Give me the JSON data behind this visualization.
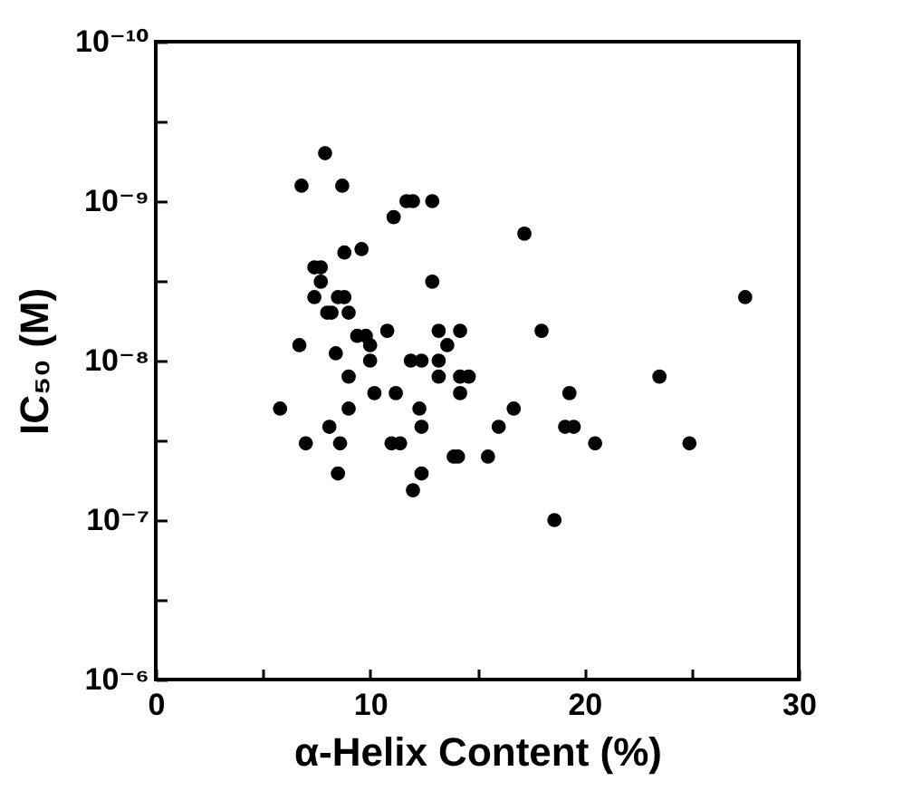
{
  "chart_data": {
    "type": "scatter",
    "xlabel": "α-Helix Content (%)",
    "ylabel": "IC₅₀ (M)",
    "log": "y",
    "marker": "circle",
    "xlim": [
      0,
      30
    ],
    "xticks": [
      0,
      {
        "value": 5,
        "label": null
      },
      10,
      {
        "value": 15,
        "label": null
      },
      20,
      {
        "value": 25,
        "label": null
      },
      30
    ],
    "ylim": [
      1e-06,
      1e-10
    ],
    "yticks": [
      {
        "value": 1e-10,
        "label": "10⁻¹⁰"
      },
      {
        "value": 3.16e-10,
        "label": null
      },
      {
        "value": 1e-09,
        "label": "10⁻⁹"
      },
      {
        "value": 3.16e-09,
        "label": null
      },
      {
        "value": 1e-08,
        "label": "10⁻⁸"
      },
      {
        "value": 3.16e-08,
        "label": null
      },
      {
        "value": 1e-07,
        "label": "10⁻⁷"
      },
      {
        "value": 3.16e-07,
        "label": null
      },
      {
        "value": 1e-06,
        "label": "10⁻⁶"
      }
    ],
    "x": [
      5.8,
      7.9,
      6.8,
      8.7,
      11.1,
      11.7,
      12.0,
      12.9,
      17.2,
      8.8,
      9.6,
      7.4,
      7.7,
      7.7,
      7.4,
      8.5,
      8.8,
      8.0,
      8.2,
      9.0,
      12.9,
      27.5,
      9.4,
      9.8,
      10.8,
      13.2,
      14.2,
      18.0,
      6.7,
      10.0,
      13.6,
      8.4,
      10.0,
      11.9,
      12.4,
      13.2,
      13.2,
      14.2,
      14.6,
      9.0,
      23.5,
      10.2,
      11.2,
      14.2,
      19.3,
      9.0,
      12.3,
      16.7,
      8.1,
      12.4,
      16.0,
      19.1,
      19.5,
      7.0,
      8.6,
      11.0,
      11.4,
      20.5,
      24.9,
      13.9,
      14.1,
      15.5,
      8.5,
      12.4,
      12.0,
      18.6
    ],
    "series": [
      {
        "color": "#000000",
        "values": [
          2e-08,
          5e-10,
          8e-10,
          8e-10,
          1.26e-09,
          1e-09,
          1e-09,
          1e-09,
          1.6e-09,
          2.1e-09,
          2e-09,
          2.6e-09,
          2.6e-09,
          3.2e-09,
          4e-09,
          4e-09,
          4e-09,
          5e-09,
          5e-09,
          5e-09,
          3.2e-09,
          4e-09,
          7e-09,
          7e-09,
          6.5e-09,
          6.5e-09,
          6.5e-09,
          6.5e-09,
          8e-09,
          8e-09,
          8e-09,
          9e-09,
          1e-08,
          1e-08,
          1e-08,
          1e-08,
          1.26e-08,
          1.26e-08,
          1.26e-08,
          1.26e-08,
          1.26e-08,
          1.6e-08,
          1.6e-08,
          1.6e-08,
          1.6e-08,
          2e-08,
          2e-08,
          2e-08,
          2.6e-08,
          2.6e-08,
          2.6e-08,
          2.6e-08,
          2.6e-08,
          3.3e-08,
          3.3e-08,
          3.3e-08,
          3.3e-08,
          3.3e-08,
          3.3e-08,
          4e-08,
          4e-08,
          4e-08,
          5.1e-08,
          5.1e-08,
          6.5e-08,
          1e-07
        ]
      }
    ]
  }
}
